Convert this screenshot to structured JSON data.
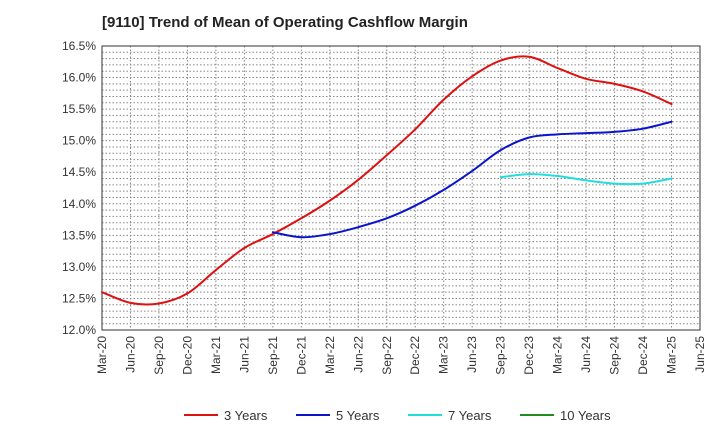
{
  "chart_data": {
    "type": "line",
    "title": "[9110]  Trend of Mean of Operating Cashflow Margin",
    "xlabel": "",
    "ylabel": "",
    "ylim": [
      12.0,
      16.5
    ],
    "ytick_step": 0.5,
    "categories": [
      "Mar-20",
      "Jun-20",
      "Sep-20",
      "Dec-20",
      "Mar-21",
      "Jun-21",
      "Sep-21",
      "Dec-21",
      "Mar-22",
      "Jun-22",
      "Sep-22",
      "Dec-22",
      "Mar-23",
      "Jun-23",
      "Sep-23",
      "Dec-23",
      "Mar-24",
      "Jun-24",
      "Sep-24",
      "Dec-24",
      "Mar-25",
      "Jun-25"
    ],
    "y_tick_labels": [
      "12.0%",
      "12.5%",
      "13.0%",
      "13.5%",
      "14.0%",
      "14.5%",
      "15.0%",
      "15.5%",
      "16.0%",
      "16.5%"
    ],
    "grid": true,
    "legend_position": "bottom",
    "series": [
      {
        "name": "3 Years",
        "color": "#dd1111",
        "values": [
          12.6,
          12.43,
          12.42,
          12.58,
          12.95,
          13.3,
          13.52,
          13.77,
          14.05,
          14.38,
          14.77,
          15.18,
          15.65,
          16.02,
          16.27,
          16.33,
          16.15,
          15.98,
          15.9,
          15.78,
          15.58,
          null
        ]
      },
      {
        "name": "5 Years",
        "color": "#0a14c8",
        "values": [
          null,
          null,
          null,
          null,
          null,
          null,
          13.55,
          13.47,
          13.52,
          13.63,
          13.77,
          13.97,
          14.22,
          14.52,
          14.85,
          15.05,
          15.1,
          15.12,
          15.14,
          15.19,
          15.3,
          null
        ]
      },
      {
        "name": "7 Years",
        "color": "#22dddd",
        "values": [
          null,
          null,
          null,
          null,
          null,
          null,
          null,
          null,
          null,
          null,
          null,
          null,
          null,
          null,
          14.42,
          14.47,
          14.44,
          14.37,
          14.32,
          14.32,
          14.4,
          null
        ]
      },
      {
        "name": "10 Years",
        "color": "#228b22",
        "values": [
          null,
          null,
          null,
          null,
          null,
          null,
          null,
          null,
          null,
          null,
          null,
          null,
          null,
          null,
          null,
          null,
          null,
          null,
          null,
          null,
          null,
          null
        ]
      }
    ]
  }
}
